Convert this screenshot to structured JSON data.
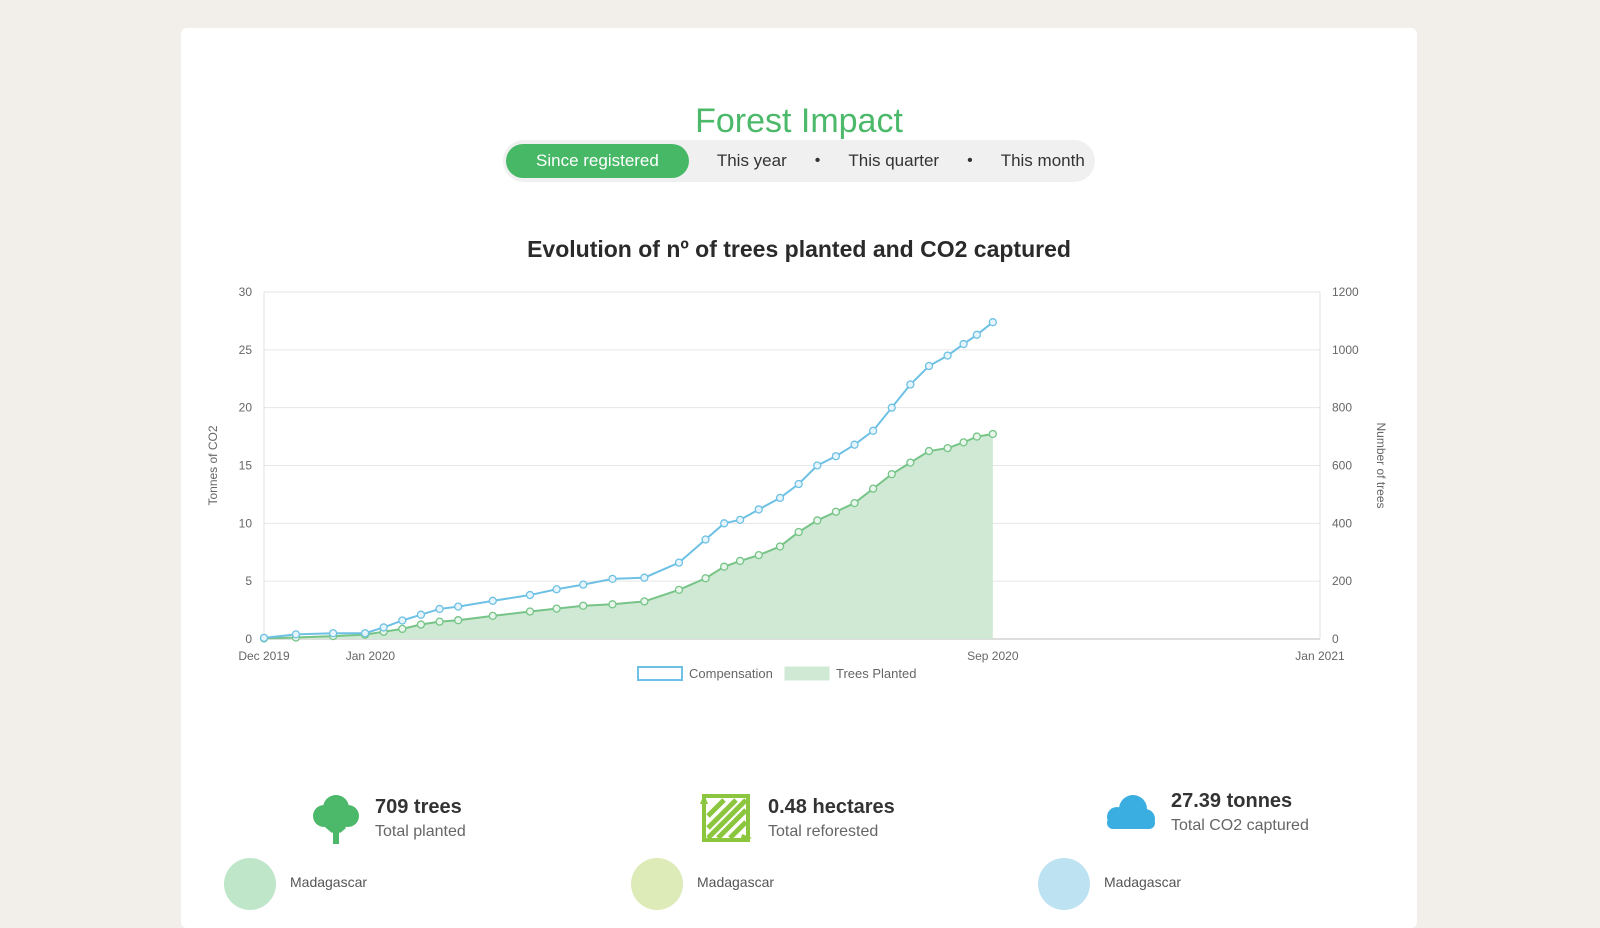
{
  "page": {
    "title": "Forest Impact"
  },
  "tabs": [
    {
      "label": "Since registered",
      "active": true
    },
    {
      "label": "This year",
      "active": false
    },
    {
      "label": "This quarter",
      "active": false
    },
    {
      "label": "This month",
      "active": false
    }
  ],
  "tab_separator": "•",
  "colors": {
    "accent": "#4cb86a",
    "compensation": "#6ec1e4",
    "trees": "#76c487",
    "trees_fill": "#cfe9d4"
  },
  "chart_data": {
    "type": "line",
    "title": "Evolution of nº of trees planted and CO2 captured",
    "x_ticks": [
      "Dec 2019",
      "Jan 2020",
      "Sep 2020",
      "Jan 2021"
    ],
    "x_range": [
      "2019-12-01",
      "2021-01-01"
    ],
    "y_left": {
      "label": "Tonnes of CO2",
      "range": [
        0,
        30
      ],
      "ticks": [
        "0",
        "5",
        "10",
        "15",
        "20",
        "25",
        "30"
      ]
    },
    "y_right": {
      "label": "Number of trees",
      "range": [
        0,
        1200
      ],
      "ticks": [
        "0",
        "200",
        "400",
        "600",
        "800",
        "1000",
        "1200"
      ]
    },
    "grid": true,
    "legend_position": "bottom",
    "series": [
      {
        "name": "Compensation",
        "axis": "left",
        "style": "line",
        "x": [
          "2019-12-01",
          "2019-12-13",
          "2019-12-27",
          "2020-01-08",
          "2020-01-15",
          "2020-01-22",
          "2020-01-29",
          "2020-02-05",
          "2020-02-12",
          "2020-02-25",
          "2020-03-10",
          "2020-03-20",
          "2020-03-30",
          "2020-04-10",
          "2020-04-22",
          "2020-05-05",
          "2020-05-15",
          "2020-05-22",
          "2020-05-28",
          "2020-06-04",
          "2020-06-12",
          "2020-06-19",
          "2020-06-26",
          "2020-07-03",
          "2020-07-10",
          "2020-07-17",
          "2020-07-24",
          "2020-07-31",
          "2020-08-07",
          "2020-08-14",
          "2020-08-20",
          "2020-08-25",
          "2020-08-31"
        ],
        "y": [
          0.1,
          0.4,
          0.5,
          0.5,
          1.0,
          1.6,
          2.1,
          2.6,
          2.8,
          3.3,
          3.8,
          4.3,
          4.7,
          5.2,
          5.3,
          6.6,
          8.6,
          10.0,
          10.3,
          11.2,
          12.2,
          13.4,
          15.0,
          15.8,
          16.8,
          18.0,
          20.0,
          22.0,
          23.6,
          24.5,
          25.5,
          26.3,
          27.39
        ]
      },
      {
        "name": "Trees Planted",
        "axis": "right",
        "style": "area",
        "x": [
          "2019-12-01",
          "2019-12-13",
          "2019-12-27",
          "2020-01-08",
          "2020-01-15",
          "2020-01-22",
          "2020-01-29",
          "2020-02-05",
          "2020-02-12",
          "2020-02-25",
          "2020-03-10",
          "2020-03-20",
          "2020-03-30",
          "2020-04-10",
          "2020-04-22",
          "2020-05-05",
          "2020-05-15",
          "2020-05-22",
          "2020-05-28",
          "2020-06-04",
          "2020-06-12",
          "2020-06-19",
          "2020-06-26",
          "2020-07-03",
          "2020-07-10",
          "2020-07-17",
          "2020-07-24",
          "2020-07-31",
          "2020-08-07",
          "2020-08-14",
          "2020-08-20",
          "2020-08-25",
          "2020-08-31"
        ],
        "y": [
          2,
          5,
          10,
          15,
          25,
          35,
          50,
          60,
          65,
          80,
          95,
          105,
          115,
          120,
          130,
          170,
          210,
          250,
          270,
          290,
          320,
          370,
          410,
          440,
          470,
          520,
          570,
          610,
          650,
          660,
          680,
          700,
          709
        ]
      }
    ]
  },
  "stats": [
    {
      "value": "709 trees",
      "caption": "Total planted",
      "icon": "tree-icon"
    },
    {
      "value": "0.48 hectares",
      "caption": "Total reforested",
      "icon": "hectares-icon"
    },
    {
      "value": "27.39 tonnes",
      "caption": "Total CO2 captured",
      "icon": "cloud-icon"
    }
  ],
  "locations": [
    {
      "label": "Madagascar",
      "color": "#bfe6c8"
    },
    {
      "label": "Madagascar",
      "color": "#dcebb8"
    },
    {
      "label": "Madagascar",
      "color": "#bde3f2"
    }
  ]
}
